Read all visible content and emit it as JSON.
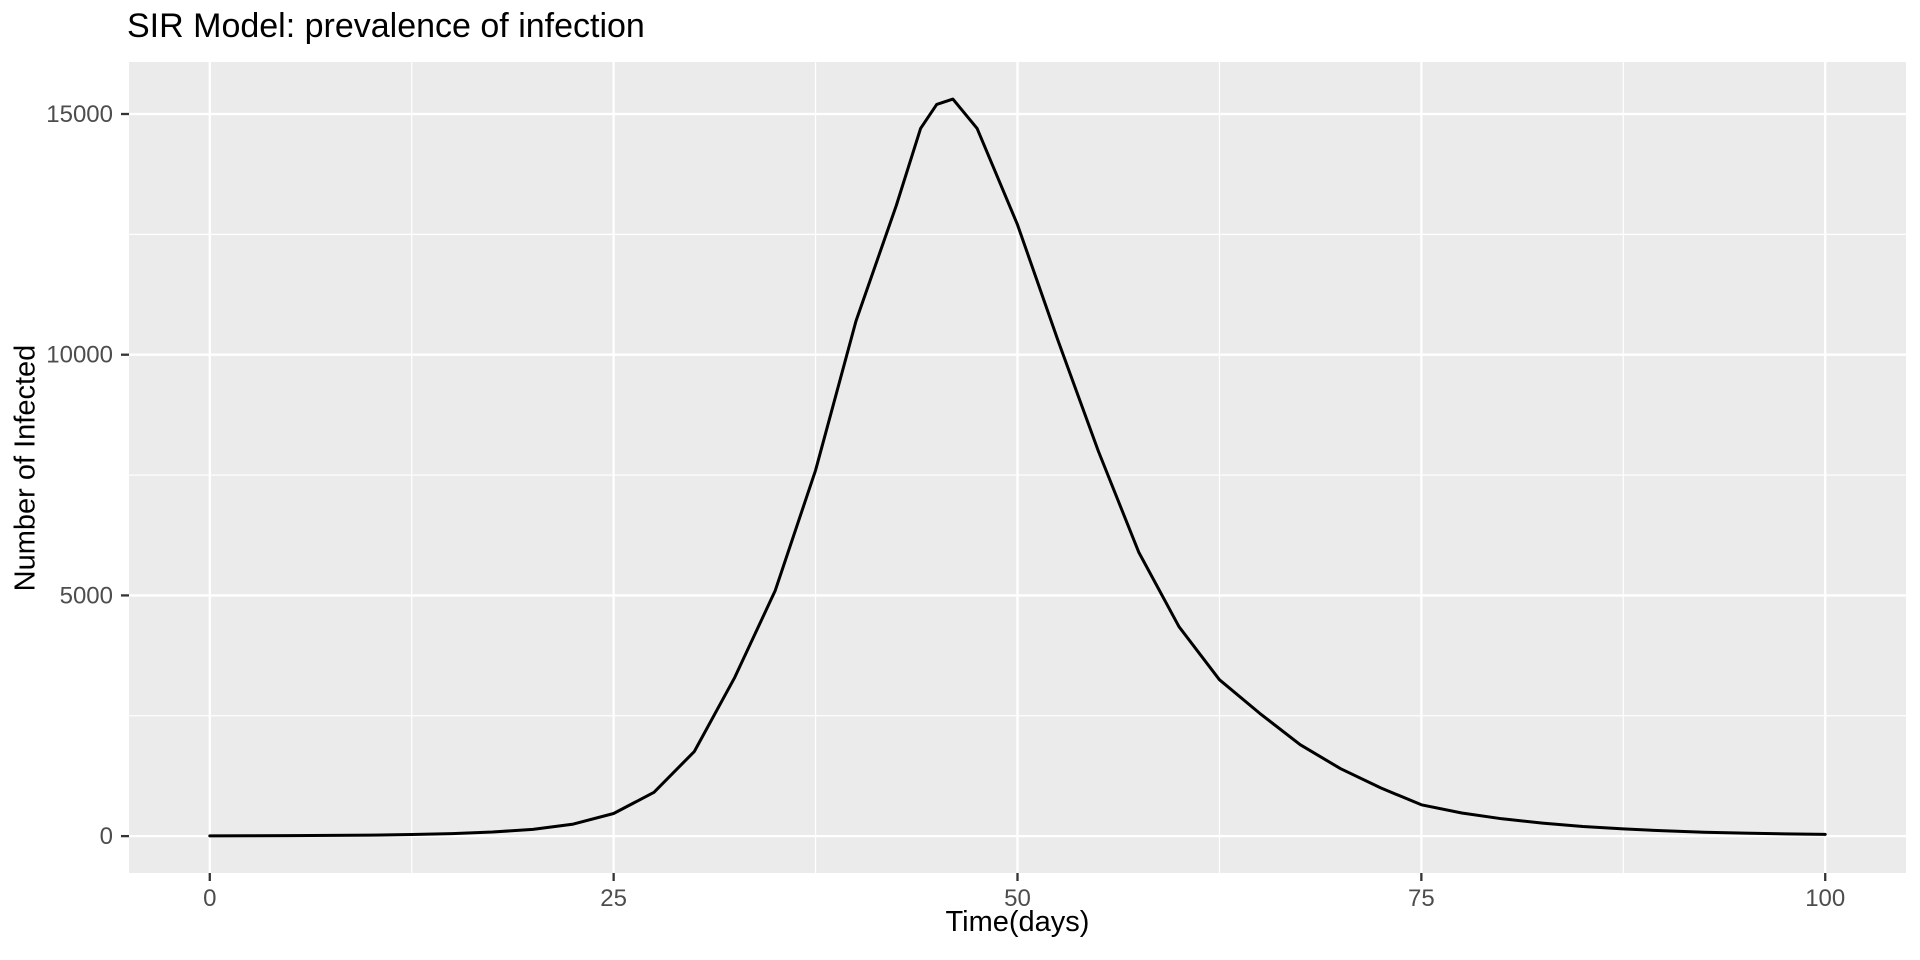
{
  "chart_data": {
    "type": "line",
    "title": "SIR Model: prevalence of infection",
    "xlabel": "Time(days)",
    "ylabel": "Number of Infected",
    "legend": "none",
    "grid": "major+minor",
    "panel_bg": "#EBEBEB",
    "grid_color": "#FFFFFF",
    "tick_color": "#333333",
    "tick_label_color": "#4D4D4D",
    "xlim": [
      -5,
      105
    ],
    "ylim": [
      -766,
      16080
    ],
    "x_ticks": [
      0,
      25,
      50,
      75,
      100
    ],
    "x_tick_labels": [
      "0",
      "25",
      "50",
      "75",
      "100"
    ],
    "y_ticks": [
      0,
      5000,
      10000,
      15000
    ],
    "y_tick_labels": [
      "0",
      "5000",
      "10000",
      "15000"
    ],
    "x_minor": [
      12.5,
      37.5,
      62.5,
      87.5
    ],
    "y_minor": [
      2500,
      7500,
      12500
    ],
    "x": [
      0,
      2.5,
      5,
      7.5,
      10,
      12.5,
      15,
      17.5,
      20,
      22.5,
      25,
      27.5,
      30,
      32.5,
      35,
      37.5,
      40,
      42.5,
      44,
      45,
      46,
      47.5,
      50,
      52.5,
      55,
      57.5,
      60,
      62.5,
      65,
      67.5,
      70,
      72.5,
      75,
      77.5,
      80,
      82.5,
      85,
      87.5,
      90,
      92.5,
      95,
      97.5,
      100
    ],
    "series": [
      {
        "name": "Infected",
        "color": "#000000",
        "values": [
          5,
          7,
          10,
          15,
          22,
          34,
          52,
          85,
          140,
          250,
          470,
          910,
          1760,
          3300,
          5100,
          7600,
          10700,
          13100,
          14700,
          15200,
          15310,
          14700,
          12700,
          10300,
          8000,
          5900,
          4350,
          3250,
          2550,
          1900,
          1400,
          1000,
          650,
          480,
          360,
          270,
          200,
          150,
          110,
          82,
          62,
          46,
          35
        ]
      }
    ],
    "peak": {
      "time": 46,
      "infected": 15310
    }
  }
}
